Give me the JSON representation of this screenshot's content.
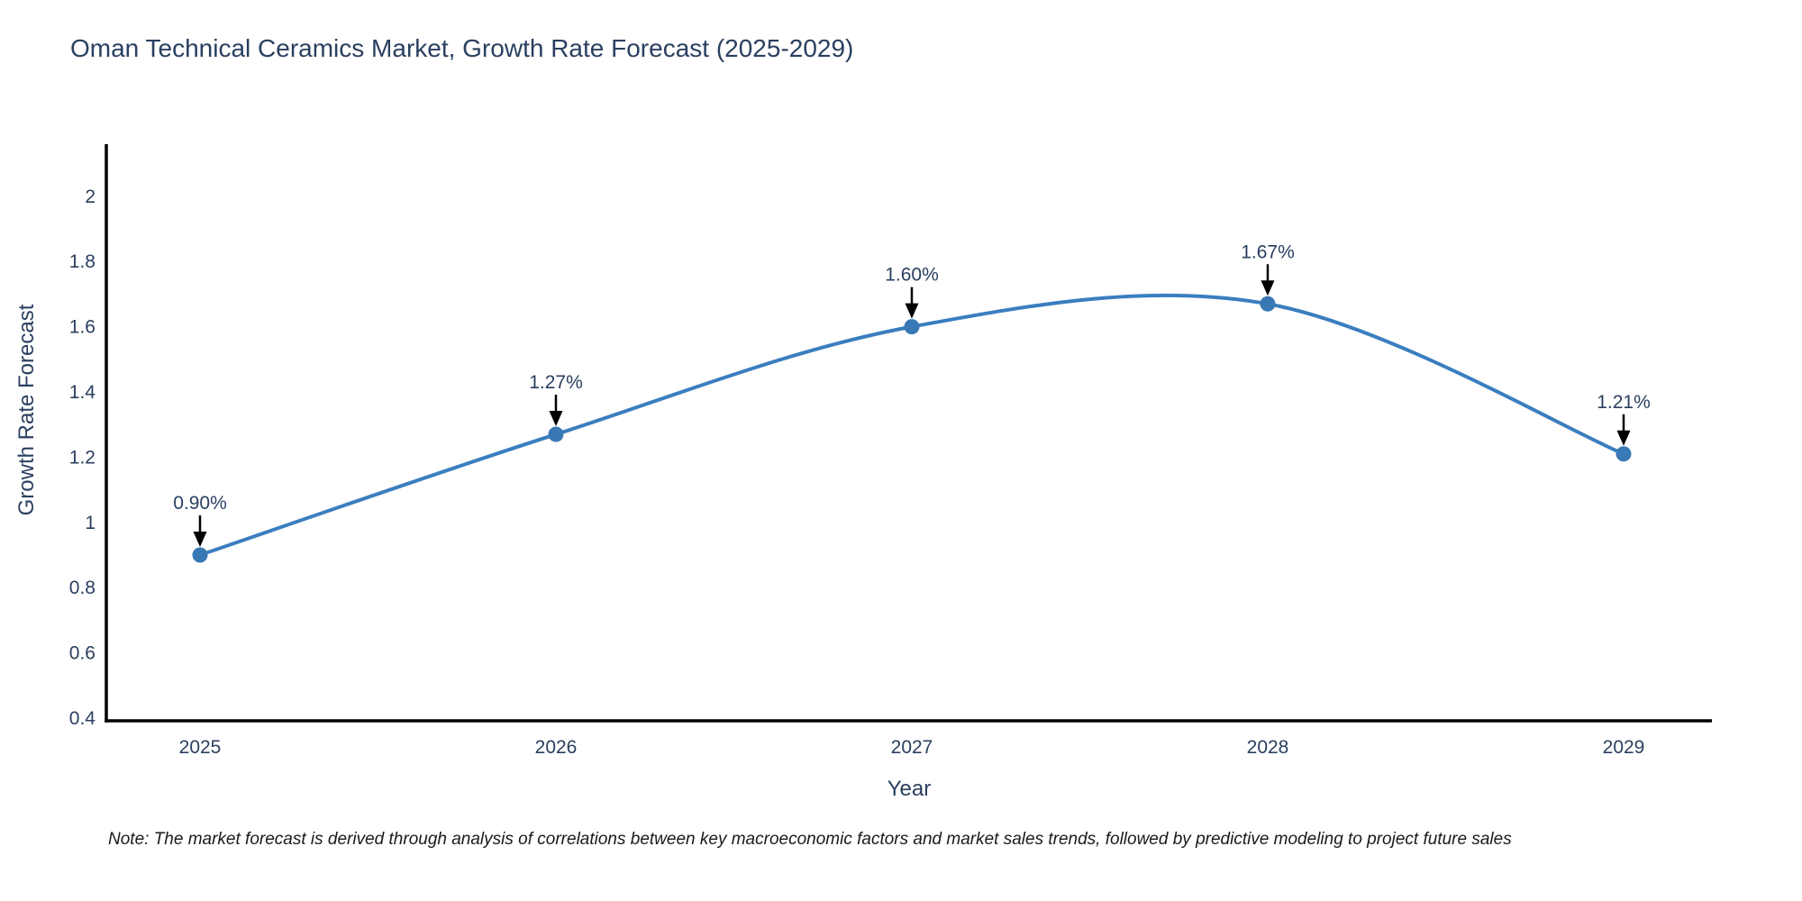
{
  "note": {
    "text": "Note: The market forecast is derived through analysis of correlations between key macroeconomic factors and market sales trends, followed by predictive modeling to project future sales"
  },
  "chart_data": {
    "type": "line",
    "title": "Oman Technical Ceramics Market, Growth Rate Forecast (2025-2029)",
    "xlabel": "Year",
    "ylabel": "Growth Rate Forecast",
    "x": [
      2025,
      2026,
      2027,
      2028,
      2029
    ],
    "values": [
      0.9,
      1.27,
      1.6,
      1.67,
      1.21
    ],
    "point_labels": [
      "0.90%",
      "1.27%",
      "1.60%",
      "1.67%",
      "1.21%"
    ],
    "yticks": [
      0.4,
      0.6,
      0.8,
      1,
      1.2,
      1.4,
      1.6,
      1.8,
      2
    ],
    "ylim": [
      0.386,
      2.16
    ],
    "line_shape": "spline",
    "grid": false,
    "legend_position": "none",
    "colors": {
      "line": "#3a7ebf",
      "marker": "#3878b4",
      "axis_line": "#000000",
      "tick_text": "#2a3f5f",
      "title_text": "#2a3f5f",
      "annotation_text": "#2a3f5f",
      "annotation_arrow": "#000000"
    }
  }
}
